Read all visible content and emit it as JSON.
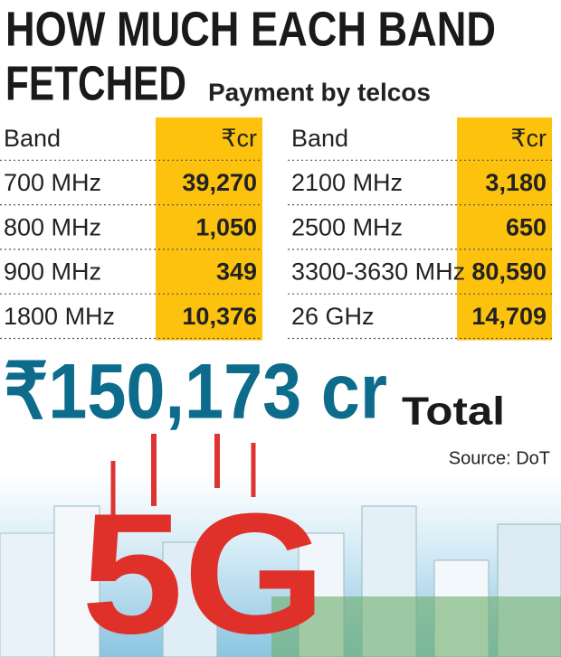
{
  "title_line1": "HOW MUCH EACH BAND",
  "title_line2": "FETCHED",
  "subtitle": "Payment by telcos",
  "tables": [
    {
      "header": [
        "Band",
        "₹cr"
      ],
      "rows": [
        [
          "700 MHz",
          "39,270"
        ],
        [
          "800 MHz",
          "1,050"
        ],
        [
          "900 MHz",
          "349"
        ],
        [
          "1800 MHz",
          "10,376"
        ]
      ]
    },
    {
      "header": [
        "Band",
        "₹cr"
      ],
      "rows": [
        [
          "2100 MHz",
          "3,180"
        ],
        [
          "2500 MHz",
          "650"
        ],
        [
          "3300-3630 MHz",
          "80,590"
        ],
        [
          "26 GHz",
          "14,709"
        ]
      ]
    }
  ],
  "total_value": "₹150,173 cr",
  "total_label": "Total",
  "source": "Source: DoT",
  "illustration_text": "5G"
}
